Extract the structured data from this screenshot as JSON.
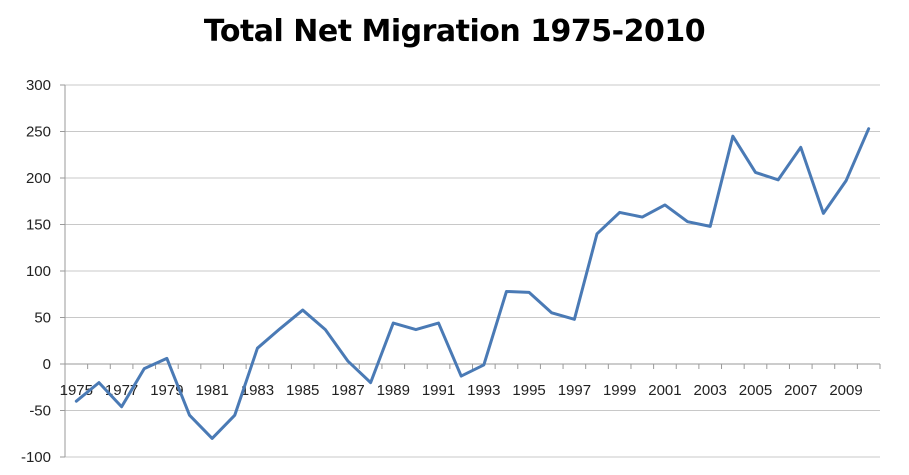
{
  "chart_data": {
    "type": "line",
    "title": "Total Net Migration 1975-2010",
    "xlabel": "",
    "ylabel": "",
    "ylim": [
      -100,
      300
    ],
    "yticks": [
      -100,
      -50,
      0,
      50,
      100,
      150,
      200,
      250,
      300
    ],
    "x": [
      1975,
      1976,
      1977,
      1978,
      1979,
      1980,
      1981,
      1982,
      1983,
      1984,
      1985,
      1986,
      1987,
      1988,
      1989,
      1990,
      1991,
      1992,
      1993,
      1994,
      1995,
      1996,
      1997,
      1998,
      1999,
      2000,
      2001,
      2002,
      2003,
      2004,
      2005,
      2006,
      2007,
      2008,
      2009,
      2010
    ],
    "xtick_labels": [
      "1975",
      "1977",
      "1979",
      "1981",
      "1983",
      "1985",
      "1987",
      "1989",
      "1991",
      "1993",
      "1995",
      "1997",
      "1999",
      "2001",
      "2003",
      "2005",
      "2007",
      "2009"
    ],
    "series": [
      {
        "color": "#4a7ab5",
        "values": [
          -40,
          -20,
          -46,
          -5,
          6,
          -55,
          -80,
          -55,
          17,
          38,
          58,
          37,
          3,
          -20,
          44,
          37,
          44,
          -13,
          -1,
          78,
          77,
          55,
          48,
          140,
          163,
          158,
          171,
          153,
          148,
          245,
          206,
          198,
          233,
          162,
          197,
          253
        ]
      }
    ],
    "grid": true,
    "legend": "none"
  }
}
